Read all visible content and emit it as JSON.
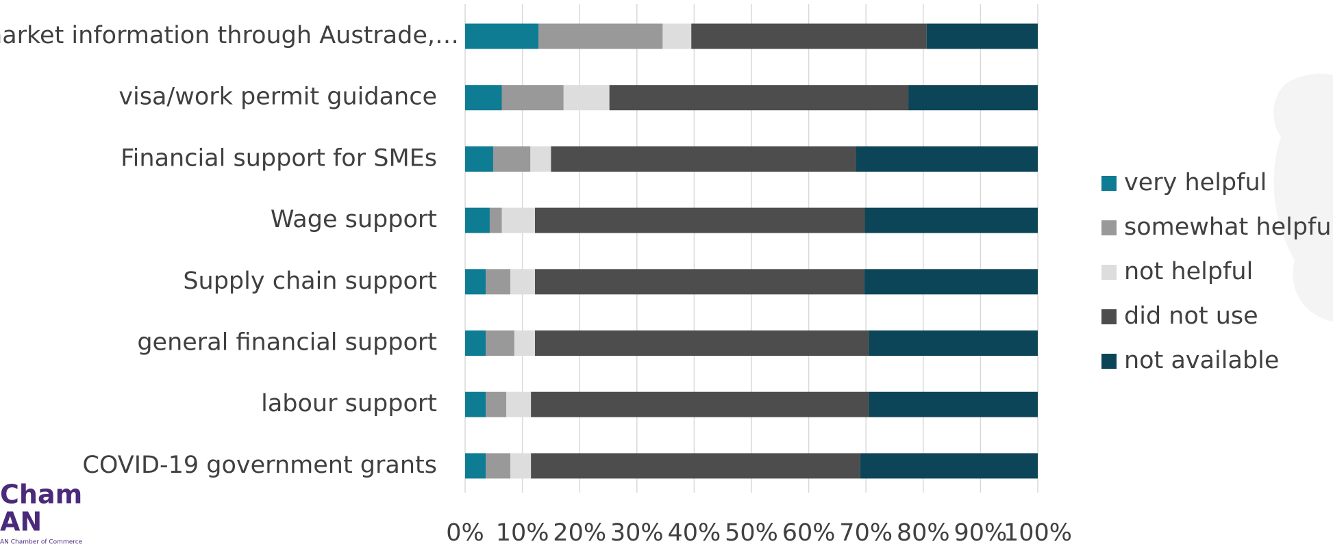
{
  "chart_data": {
    "type": "stacked_barh",
    "categories": [
      "market information through Austrade,…",
      "visa/work permit guidance",
      "Financial support for SMEs",
      "Wage support",
      "Supply chain support",
      "general financial support",
      "labour support",
      "COVID-19 government grants"
    ],
    "series": [
      {
        "name": "very helpful",
        "color": "#0e7c93",
        "values": [
          12.8,
          6.4,
          4.9,
          4.3,
          3.6,
          3.6,
          3.6,
          3.6
        ]
      },
      {
        "name": "somewhat helpful",
        "color": "#999999",
        "values": [
          21.7,
          10.8,
          6.5,
          2.1,
          4.3,
          5.0,
          3.6,
          4.3
        ]
      },
      {
        "name": "not helpful",
        "color": "#dddddd",
        "values": [
          5.0,
          8.0,
          3.6,
          5.8,
          4.3,
          3.6,
          4.3,
          3.6
        ]
      },
      {
        "name": "did not use",
        "color": "#4d4d4d",
        "values": [
          41.1,
          52.2,
          53.3,
          57.6,
          57.5,
          58.3,
          59.0,
          57.5
        ]
      },
      {
        "name": "not available",
        "color": "#0c4557",
        "values": [
          19.4,
          22.6,
          31.7,
          30.2,
          30.3,
          29.5,
          29.5,
          31.0
        ]
      }
    ],
    "xlim": [
      0,
      100
    ],
    "xticks": [
      {
        "value": 0,
        "label": "0%"
      },
      {
        "value": 10,
        "label": "10%"
      },
      {
        "value": 20,
        "label": "20%"
      },
      {
        "value": 30,
        "label": "30%"
      },
      {
        "value": 40,
        "label": "40%"
      },
      {
        "value": 50,
        "label": "50%"
      },
      {
        "value": 60,
        "label": "60%"
      },
      {
        "value": 70,
        "label": "70%"
      },
      {
        "value": 80,
        "label": "80%"
      },
      {
        "value": 90,
        "label": "90%"
      },
      {
        "value": 100,
        "label": "100%"
      }
    ],
    "grid": true,
    "legend": "right"
  },
  "logo": {
    "line1": "Cham",
    "line2": "AN",
    "line3": "AN Chamber of Commerce"
  }
}
